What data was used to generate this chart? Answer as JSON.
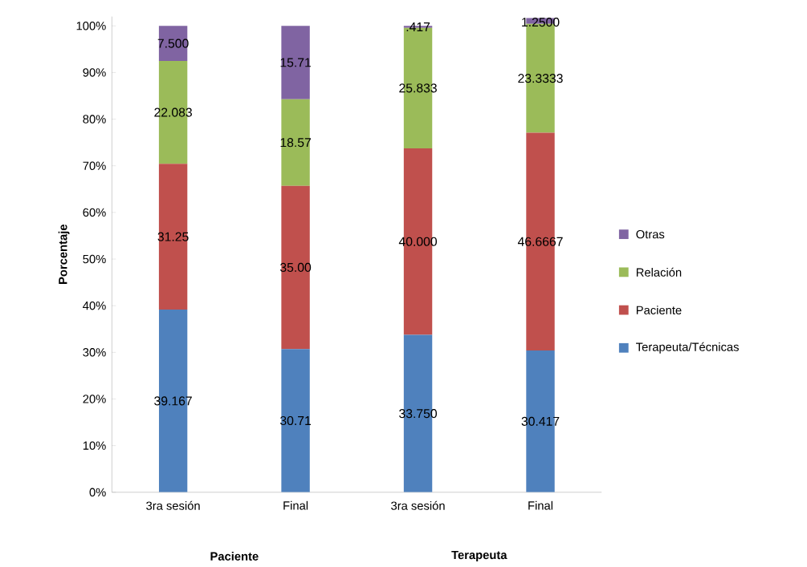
{
  "chart_data": {
    "type": "bar",
    "stacked": true,
    "ylabel": "Porcentaje",
    "categories": [
      "3ra sesión",
      "Final",
      "3ra sesión",
      "Final"
    ],
    "series": [
      {
        "name": "Terapeuta/Técnicas",
        "color": "#4f81bd",
        "values": [
          39.167,
          30.71,
          33.75,
          30.417
        ],
        "value_labels": [
          "39.167",
          "30.71",
          "33.750",
          "30.417"
        ]
      },
      {
        "name": "Paciente",
        "color": "#c0504d",
        "values": [
          31.25,
          35.0,
          40.0,
          46.6667
        ],
        "value_labels": [
          "31.25",
          "35.00",
          "40.000",
          "46.6667"
        ]
      },
      {
        "name": "Relación",
        "color": "#9bbb59",
        "values": [
          22.083,
          18.57,
          25.833,
          23.3333
        ],
        "value_labels": [
          "22.083",
          "18.57",
          "25.833",
          "23.3333"
        ]
      },
      {
        "name": "Otras",
        "color": "#8064a2",
        "values": [
          7.5,
          15.71,
          0.417,
          1.25
        ],
        "value_labels": [
          "7.500",
          "15.71",
          ".417",
          "1.2500"
        ]
      }
    ],
    "ylim": [
      0,
      102
    ],
    "yticks": [
      {
        "value": 0,
        "label": "0%"
      },
      {
        "value": 10,
        "label": "10%"
      },
      {
        "value": 20,
        "label": "20%"
      },
      {
        "value": 30,
        "label": "30%"
      },
      {
        "value": 40,
        "label": "40%"
      },
      {
        "value": 50,
        "label": "50%"
      },
      {
        "value": 60,
        "label": "60%"
      },
      {
        "value": 70,
        "label": "70%"
      },
      {
        "value": 80,
        "label": "80%"
      },
      {
        "value": 90,
        "label": "90%"
      },
      {
        "value": 100,
        "label": "100%"
      }
    ],
    "grid": false,
    "legend": "right",
    "annotations": [
      "Paciente",
      "Terapeuta"
    ]
  }
}
